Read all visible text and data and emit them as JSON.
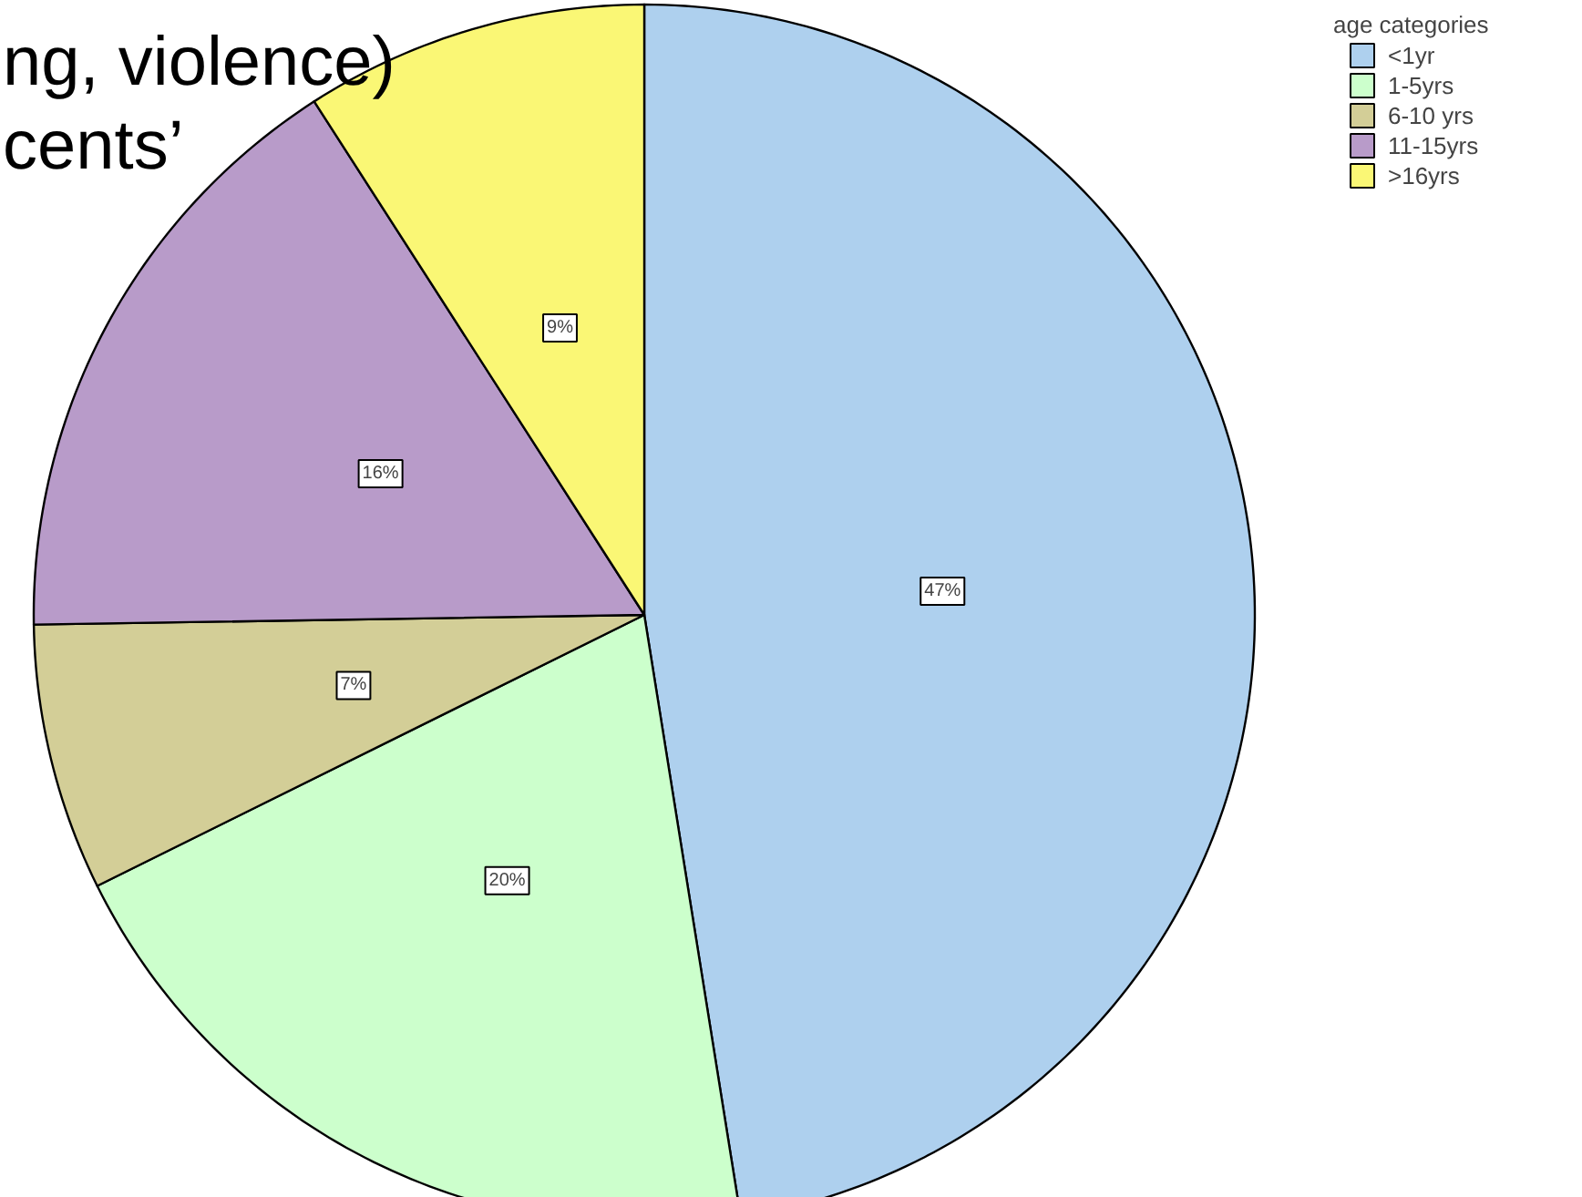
{
  "chart_data": {
    "type": "pie",
    "legend_title": "age categories",
    "categories": [
      "<1yr",
      "1-5yrs",
      "6-10 yrs",
      "11-15yrs",
      ">16yrs"
    ],
    "values": [
      47,
      20,
      7,
      16,
      9
    ],
    "colors": [
      "#aed0ee",
      "#ccffcc",
      "#d3ce97",
      "#b89bc9",
      "#faf775"
    ],
    "value_labels": [
      "47%",
      "20%",
      "7%",
      "16%",
      "9%"
    ],
    "legend": "top right",
    "annotations": [
      "ng, violence)",
      "cents’"
    ]
  }
}
